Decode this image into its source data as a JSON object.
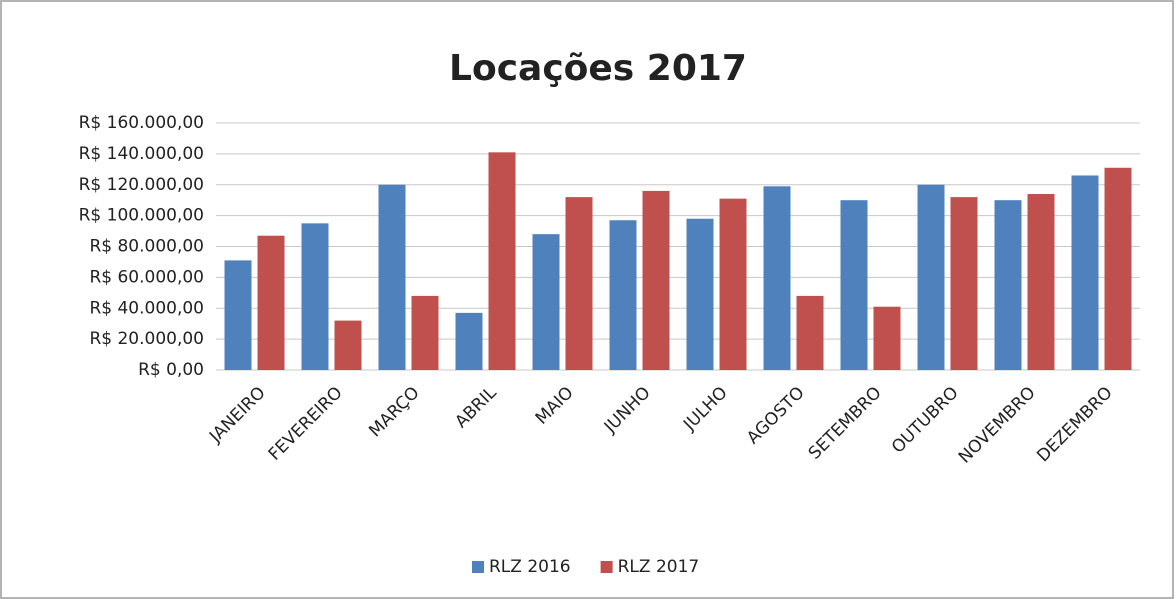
{
  "chart_data": {
    "type": "bar",
    "title": "Locações 2017",
    "categories": [
      "JANEIRO",
      "FEVEREIRO",
      "MARÇO",
      "ABRIL",
      "MAIO",
      "JUNHO",
      "JULHO",
      "AGOSTO",
      "SETEMBRO",
      "OUTUBRO",
      "NOVEMBRO",
      "DEZEMBRO"
    ],
    "series": [
      {
        "name": "RLZ 2016",
        "color": "#4f81bd",
        "values": [
          71000,
          95000,
          120000,
          37000,
          88000,
          97000,
          98000,
          119000,
          110000,
          120000,
          110000,
          126000
        ]
      },
      {
        "name": "RLZ 2017",
        "color": "#c0504d",
        "values": [
          87000,
          32000,
          48000,
          141000,
          112000,
          116000,
          111000,
          48000,
          41000,
          112000,
          114000,
          131000
        ]
      }
    ],
    "ylim": [
      0,
      160000
    ],
    "yticks": [
      {
        "value": 0,
        "label": "R$ 0,00"
      },
      {
        "value": 20000,
        "label": "R$ 20.000,00"
      },
      {
        "value": 40000,
        "label": "R$ 40.000,00"
      },
      {
        "value": 60000,
        "label": "R$ 60.000,00"
      },
      {
        "value": 80000,
        "label": "R$ 80.000,00"
      },
      {
        "value": 100000,
        "label": "R$ 100.000,00"
      },
      {
        "value": 120000,
        "label": "R$ 120.000,00"
      },
      {
        "value": 140000,
        "label": "R$ 140.000,00"
      },
      {
        "value": 160000,
        "label": "R$ 160.000,00"
      }
    ],
    "grid": true,
    "legend": "bottom"
  }
}
